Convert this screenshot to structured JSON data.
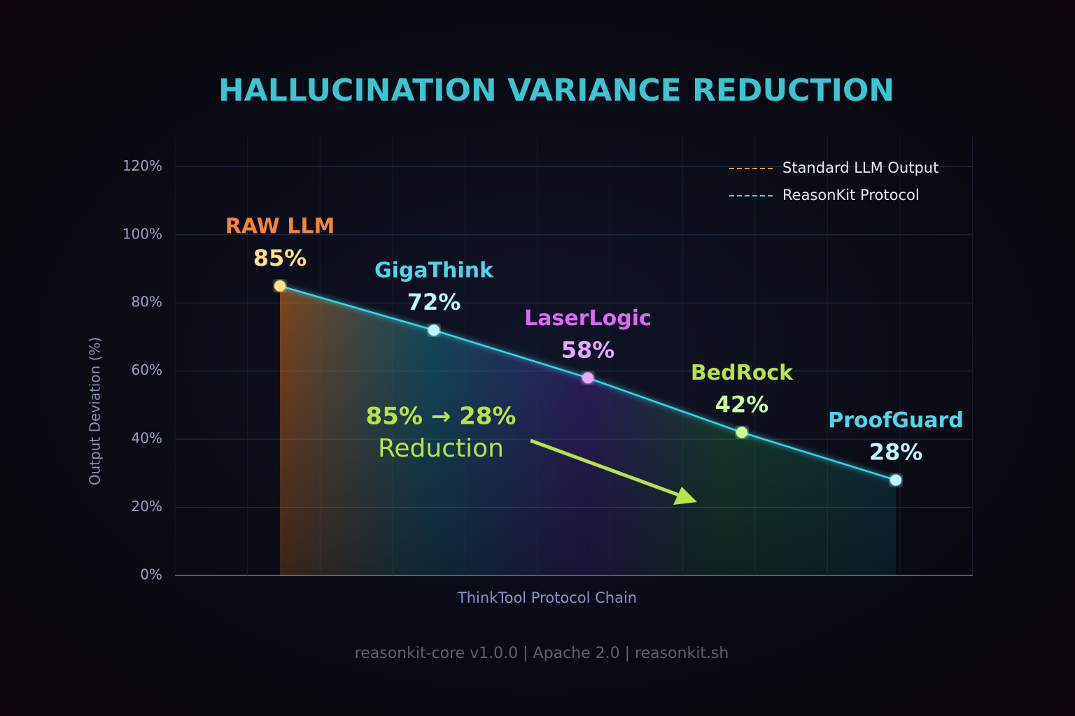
{
  "chart_data": {
    "type": "line",
    "title": "HALLUCINATION VARIANCE REDUCTION",
    "y_label": "Output Deviation (%)",
    "x_label": "ThinkTool Protocol Chain",
    "categories": [
      "RAW LLM",
      "GigaThink",
      "LaserLogic",
      "BedRock",
      "ProofGuard"
    ],
    "label_colors": [
      "#f0863a",
      "#4fd6e8",
      "#d86bf0",
      "#b6e34a",
      "#4fd6e8"
    ],
    "point_colors": [
      "#ffe08a",
      "#bff6ff",
      "#e7a9ff",
      "#c8ff9c",
      "#bff6ff"
    ],
    "series": [
      {
        "name": "Standard LLM Output",
        "color": "#f39a3c",
        "values": [
          85,
          null,
          null,
          null,
          null
        ],
        "value_labels": [
          "85%",
          null,
          null,
          null,
          null
        ]
      },
      {
        "name": "ReasonKit Protocol",
        "color": "#3fd4e6",
        "values": [
          null,
          72,
          58,
          42,
          28
        ],
        "value_labels": [
          null,
          "72%",
          "58%",
          "42%",
          "28%"
        ]
      }
    ],
    "ylim": [
      0,
      125
    ],
    "yticks": [
      {
        "value": 0,
        "label": "0%"
      },
      {
        "value": 20,
        "label": "20%"
      },
      {
        "value": 40,
        "label": "40%"
      },
      {
        "value": 60,
        "label": "60%"
      },
      {
        "value": 80,
        "label": "80%"
      },
      {
        "value": 100,
        "label": "100%"
      },
      {
        "value": 120,
        "label": "120%"
      }
    ],
    "grid": true,
    "legend": "upper right",
    "annotation": {
      "line1": "85% → 28%",
      "line2": "Reduction"
    },
    "footer": "reasonkit-core v1.0.0 | Apache 2.0 | reasonkit.sh"
  }
}
